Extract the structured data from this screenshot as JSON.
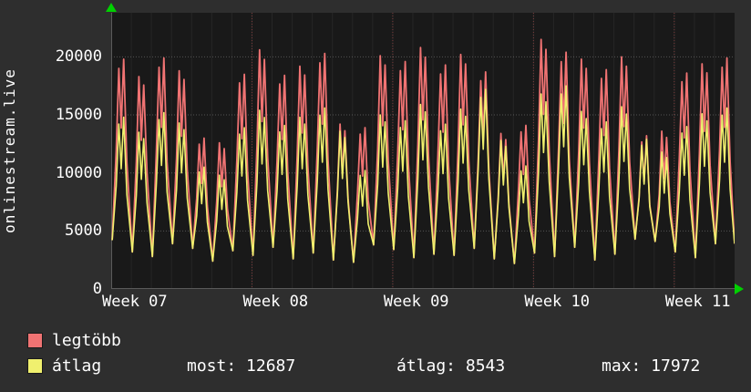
{
  "site_label": "onlinestream.live",
  "colors": {
    "legtobb": "#f07373",
    "atlag": "#f0f06e",
    "arrow": "#00d000",
    "background": "#2e2e2e",
    "plot_background": "#191919",
    "grid_major_h": "rgba(255,255,255,0.25)",
    "grid_major_v": "rgba(255,100,100,0.40)",
    "grid_minor_v": "rgba(255,255,255,0.06)",
    "axis": "#5a5a5a"
  },
  "legend": [
    {
      "label": "legtöbb",
      "color": "#f07373"
    },
    {
      "label": "átlag",
      "color": "#f0f06e"
    }
  ],
  "stats": [
    {
      "label": "most:",
      "value": "12687",
      "text": "most: 12687"
    },
    {
      "label": "átlag:",
      "value": "8543",
      "text": "átlag: 8543"
    },
    {
      "label": "max:",
      "value": "17972",
      "text": "max: 17972"
    }
  ],
  "chart_data": {
    "type": "line",
    "title": "",
    "ylabel": "onlinestream.live",
    "xlabel": "",
    "grid": true,
    "legend_position": "bottom-left",
    "ylim": [
      0,
      23800
    ],
    "yticks": [
      0,
      5000,
      10000,
      15000,
      20000
    ],
    "x_tick_labels": [
      "Week 07",
      "Week 08",
      "Week 09",
      "Week 10",
      "Week 11"
    ],
    "x_tick_days": [
      0,
      7,
      14,
      21,
      28
    ],
    "days_shown": 31,
    "series": [
      {
        "name": "legtöbb",
        "color": "#f07373",
        "day_peaks": [
          19800,
          18300,
          19900,
          18800,
          13000,
          12600,
          18500,
          20600,
          18400,
          19200,
          20300,
          14200,
          13900,
          20100,
          19600,
          20800,
          19300,
          20200,
          18700,
          13400,
          14100,
          21500,
          20400,
          19800,
          18900,
          20000,
          13200,
          13600,
          18600,
          19400,
          19900
        ]
      },
      {
        "name": "átlag",
        "color": "#f0f06e",
        "day_peaks": [
          14800,
          13500,
          15200,
          14300,
          10500,
          9800,
          13900,
          15400,
          14100,
          14800,
          15600,
          13600,
          10200,
          15000,
          14500,
          15900,
          14200,
          15500,
          17200,
          12800,
          10600,
          16800,
          17500,
          15300,
          14400,
          15700,
          12900,
          11800,
          14000,
          15100,
          15600
        ]
      }
    ],
    "day_lows": [
      4200,
      3200,
      2800,
      3900,
      3500,
      2400,
      3300,
      2900,
      3600,
      2600,
      3100,
      2500,
      2300,
      3800,
      3400,
      2700,
      3000,
      2900,
      3500,
      2600,
      2200,
      3100,
      2800,
      3600,
      2500,
      3000,
      4300,
      4100,
      3200,
      2700,
      3900
    ]
  }
}
